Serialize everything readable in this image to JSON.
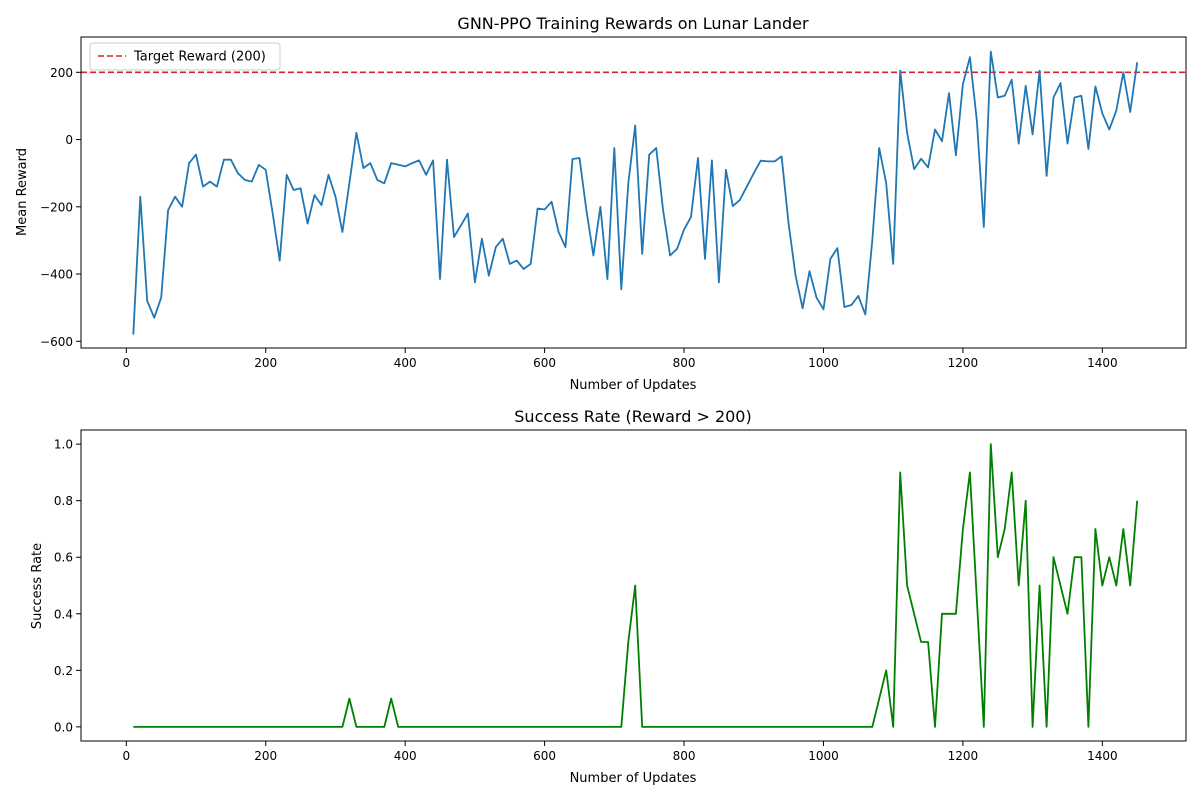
{
  "chart_data": [
    {
      "type": "line",
      "title": "GNN-PPO Training Rewards on Lunar Lander",
      "xlabel": "Number of Updates",
      "ylabel": "Mean Reward",
      "xlim": [
        -65,
        1520
      ],
      "ylim": [
        -620,
        305
      ],
      "xticks": [
        0,
        200,
        400,
        600,
        800,
        1000,
        1200,
        1400
      ],
      "yticks": [
        -600,
        -400,
        -200,
        0,
        200
      ],
      "grid": false,
      "legend": "top-left",
      "reference_lines": [
        {
          "name": "Target Reward (200)",
          "y": 200,
          "color": "#d62728",
          "style": "dashed"
        }
      ],
      "series": [
        {
          "color": "#1f77b4",
          "x": [
            10,
            20,
            30,
            40,
            50,
            60,
            70,
            80,
            90,
            100,
            110,
            120,
            130,
            140,
            150,
            160,
            170,
            180,
            190,
            200,
            210,
            220,
            230,
            240,
            250,
            260,
            270,
            280,
            290,
            300,
            310,
            320,
            330,
            340,
            350,
            360,
            370,
            380,
            390,
            400,
            410,
            420,
            430,
            440,
            450,
            460,
            470,
            480,
            490,
            500,
            510,
            520,
            530,
            540,
            550,
            560,
            570,
            580,
            590,
            600,
            610,
            620,
            630,
            640,
            650,
            660,
            670,
            680,
            690,
            700,
            710,
            720,
            730,
            740,
            750,
            760,
            770,
            780,
            790,
            800,
            810,
            820,
            830,
            840,
            850,
            860,
            870,
            880,
            890,
            900,
            910,
            920,
            930,
            940,
            950,
            960,
            970,
            980,
            990,
            1000,
            1010,
            1020,
            1030,
            1040,
            1050,
            1060,
            1070,
            1080,
            1090,
            1100,
            1110,
            1120,
            1130,
            1140,
            1150,
            1160,
            1170,
            1180,
            1190,
            1200,
            1210,
            1220,
            1230,
            1240,
            1250,
            1260,
            1270,
            1280,
            1290,
            1300,
            1310,
            1320,
            1330,
            1340,
            1350,
            1360,
            1370,
            1380,
            1390,
            1400,
            1410,
            1420,
            1430,
            1440,
            1450
          ],
          "values": [
            -580,
            -170,
            -480,
            -530,
            -470,
            -210,
            -170,
            -200,
            -70,
            -45,
            -140,
            -125,
            -140,
            -60,
            -60,
            -100,
            -120,
            -125,
            -75,
            -90,
            -220,
            -360,
            -105,
            -150,
            -145,
            -250,
            -165,
            -195,
            -105,
            -170,
            -275,
            -130,
            20,
            -85,
            -70,
            -120,
            -130,
            -70,
            -75,
            -80,
            -70,
            -62,
            -105,
            -62,
            -415,
            -60,
            -290,
            -255,
            -220,
            -425,
            -295,
            -405,
            -320,
            -295,
            -370,
            -360,
            -385,
            -370,
            -205,
            -208,
            -185,
            -275,
            -320,
            -58,
            -55,
            -210,
            -345,
            -200,
            -415,
            -25,
            -445,
            -130,
            42,
            -340,
            -45,
            -25,
            -210,
            -345,
            -325,
            -268,
            -230,
            -55,
            -355,
            -62,
            -425,
            -90,
            -198,
            -180,
            -140,
            -100,
            -63,
            -65,
            -65,
            -50,
            -250,
            -405,
            -502,
            -392,
            -470,
            -505,
            -355,
            -323,
            -498,
            -492,
            -465,
            -520,
            -300,
            -25,
            -130,
            -370,
            205,
            20,
            -88,
            -57,
            -83,
            30,
            -5,
            138,
            -47,
            165,
            245,
            55,
            -260,
            262,
            125,
            130,
            178,
            -12,
            160,
            15,
            205,
            -108,
            125,
            168,
            -12,
            125,
            130,
            -28,
            158,
            78,
            30,
            86,
            200,
            82,
            230
          ]
        }
      ]
    },
    {
      "type": "line",
      "title": "Success Rate (Reward > 200)",
      "xlabel": "Number of Updates",
      "ylabel": "Success Rate",
      "xlim": [
        -65,
        1520
      ],
      "ylim": [
        -0.05,
        1.05
      ],
      "xticks": [
        0,
        200,
        400,
        600,
        800,
        1000,
        1200,
        1400
      ],
      "yticks": [
        "0.0",
        "0.2",
        "0.4",
        "0.6",
        "0.8",
        "1.0"
      ],
      "grid": false,
      "series": [
        {
          "color": "#008000",
          "x": [
            10,
            310,
            320,
            330,
            370,
            380,
            390,
            710,
            720,
            730,
            740,
            1070,
            1090,
            1100,
            1110,
            1120,
            1140,
            1150,
            1160,
            1170,
            1190,
            1200,
            1210,
            1230,
            1240,
            1250,
            1260,
            1270,
            1280,
            1290,
            1300,
            1310,
            1320,
            1330,
            1340,
            1350,
            1360,
            1370,
            1380,
            1390,
            1400,
            1410,
            1420,
            1430,
            1440,
            1450
          ],
          "values": [
            0,
            0,
            0.1,
            0,
            0,
            0.1,
            0,
            0,
            0.3,
            0.5,
            0,
            0,
            0.2,
            0,
            0.9,
            0.5,
            0.3,
            0.3,
            0,
            0.4,
            0.4,
            0.7,
            0.9,
            0,
            1.0,
            0.6,
            0.7,
            0.9,
            0.5,
            0.8,
            0,
            0.5,
            0,
            0.6,
            0.5,
            0.4,
            0.6,
            0.6,
            0,
            0.7,
            0.5,
            0.6,
            0.5,
            0.7,
            0.5,
            0.8
          ]
        }
      ]
    }
  ]
}
